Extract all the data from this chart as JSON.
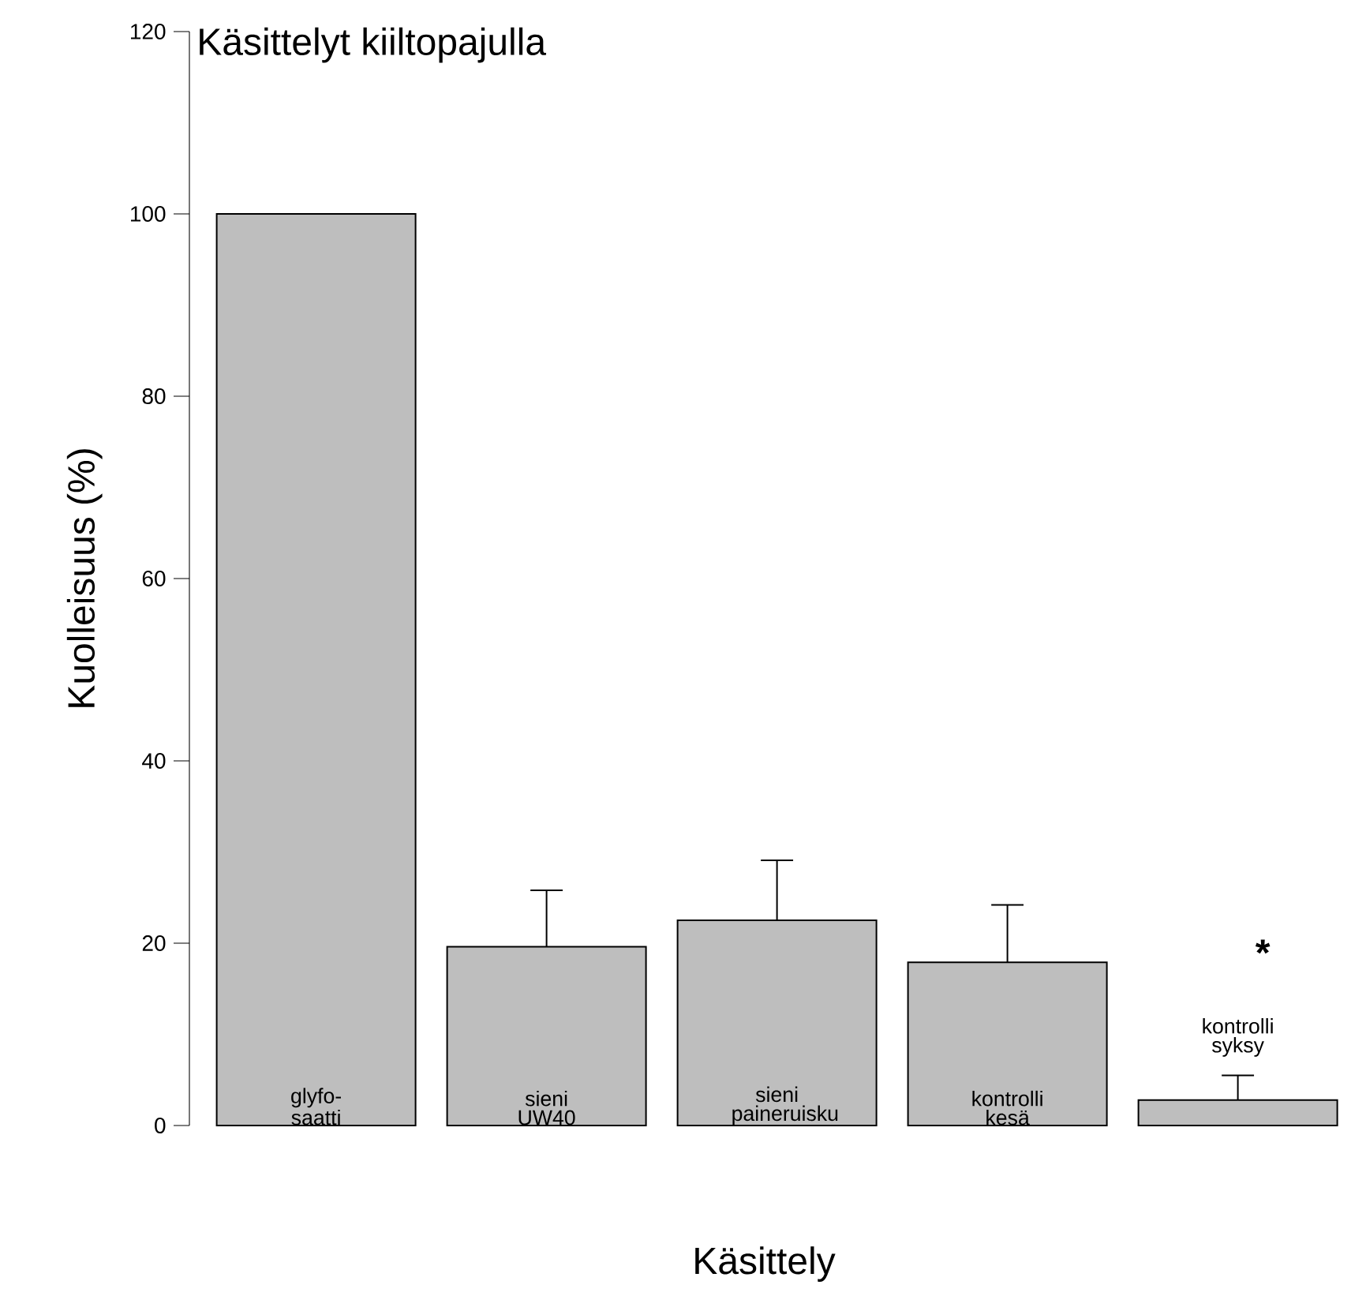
{
  "chart_data": {
    "type": "bar",
    "title": "Käsittelyt kiiltopajulla",
    "xlabel": "Käsittely",
    "ylabel": "Kuolleisuus (%)",
    "categories": [
      "glyfo- saatti",
      "sieni UW40",
      "sieni paineruisku",
      "kontrolli kesä",
      "kontrolli syksy"
    ],
    "values": [
      100,
      19.6,
      22.5,
      17.9,
      2.8
    ],
    "errors": [
      null,
      [
        19.6,
        25.8
      ],
      [
        22.5,
        29.1
      ],
      [
        17.9,
        24.2
      ],
      [
        2.8,
        5.5
      ]
    ],
    "color": "#bebebe",
    "ylim": [
      0,
      120
    ],
    "yticks": [
      0,
      20,
      40,
      60,
      80,
      100,
      120
    ],
    "annotations": [
      "*"
    ],
    "grid": false
  }
}
